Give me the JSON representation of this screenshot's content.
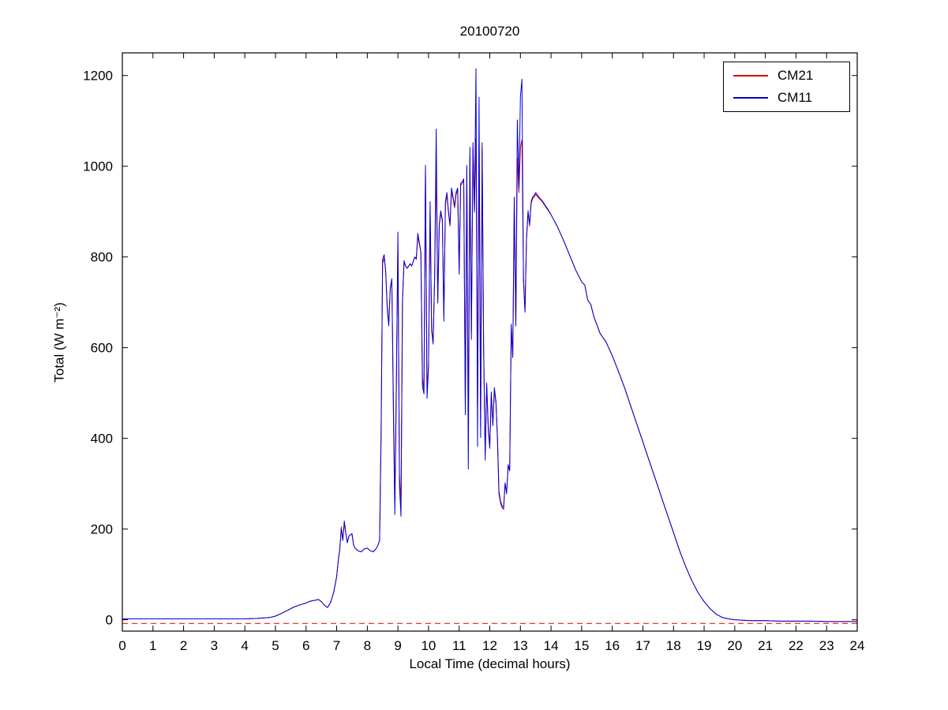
{
  "figure": {
    "background": "#ffffff"
  },
  "chart_data": {
    "type": "line",
    "title": "20100720",
    "xlabel": "Local Time (decimal hours)",
    "ylabel": "Total (W m⁻²)",
    "xlim": [
      0,
      24
    ],
    "ylim": [
      -25,
      1250
    ],
    "xticks": [
      0,
      1,
      2,
      3,
      4,
      5,
      6,
      7,
      8,
      9,
      10,
      11,
      12,
      13,
      14,
      15,
      16,
      17,
      18,
      19,
      20,
      21,
      22,
      23,
      24
    ],
    "yticks": [
      0,
      200,
      400,
      600,
      800,
      1000,
      1200
    ],
    "grid": false,
    "legend_position": "top-right",
    "series": [
      {
        "name": "CM21",
        "color": "#e00000"
      },
      {
        "name": "CM11",
        "color": "#0000dd"
      }
    ],
    "reference_line": {
      "y": -8,
      "color": "#e00000",
      "style": "dashed"
    },
    "points": [
      [
        0,
        2,
        2
      ],
      [
        0.5,
        2,
        2
      ],
      [
        1,
        2,
        2
      ],
      [
        1.5,
        2,
        2
      ],
      [
        2,
        2,
        2
      ],
      [
        2.5,
        2,
        2
      ],
      [
        3,
        2,
        2
      ],
      [
        3.5,
        2,
        2
      ],
      [
        4,
        2,
        2
      ],
      [
        4.4,
        3,
        3
      ],
      [
        4.8,
        5,
        5
      ],
      [
        5.0,
        8,
        8
      ],
      [
        5.2,
        14,
        14
      ],
      [
        5.4,
        21,
        21
      ],
      [
        5.6,
        28,
        28
      ],
      [
        5.8,
        33,
        33
      ],
      [
        6.0,
        37,
        37
      ],
      [
        6.1,
        40,
        40
      ],
      [
        6.2,
        42,
        42
      ],
      [
        6.3,
        43,
        43
      ],
      [
        6.4,
        45,
        45
      ],
      [
        6.5,
        40,
        40
      ],
      [
        6.6,
        32,
        32
      ],
      [
        6.7,
        27,
        27
      ],
      [
        6.8,
        38,
        38
      ],
      [
        6.9,
        60,
        60
      ],
      [
        7.0,
        95,
        95
      ],
      [
        7.05,
        130,
        130
      ],
      [
        7.1,
        155,
        155
      ],
      [
        7.15,
        205,
        200
      ],
      [
        7.2,
        175,
        175
      ],
      [
        7.25,
        212,
        218
      ],
      [
        7.3,
        190,
        190
      ],
      [
        7.35,
        170,
        170
      ],
      [
        7.4,
        185,
        185
      ],
      [
        7.5,
        190,
        190
      ],
      [
        7.55,
        165,
        165
      ],
      [
        7.6,
        158,
        158
      ],
      [
        7.7,
        152,
        152
      ],
      [
        7.8,
        150,
        150
      ],
      [
        7.9,
        156,
        156
      ],
      [
        8.0,
        158,
        158
      ],
      [
        8.1,
        152,
        152
      ],
      [
        8.2,
        150,
        150
      ],
      [
        8.3,
        158,
        158
      ],
      [
        8.35,
        165,
        165
      ],
      [
        8.4,
        175,
        175
      ],
      [
        8.45,
        420,
        400
      ],
      [
        8.5,
        785,
        795
      ],
      [
        8.55,
        798,
        805
      ],
      [
        8.6,
        770,
        768
      ],
      [
        8.65,
        695,
        688
      ],
      [
        8.7,
        652,
        648
      ],
      [
        8.75,
        728,
        732
      ],
      [
        8.8,
        748,
        752
      ],
      [
        8.85,
        500,
        470
      ],
      [
        8.9,
        262,
        232
      ],
      [
        8.95,
        540,
        520
      ],
      [
        9.0,
        830,
        855
      ],
      [
        9.05,
        320,
        295
      ],
      [
        9.1,
        252,
        228
      ],
      [
        9.15,
        700,
        705
      ],
      [
        9.2,
        788,
        792
      ],
      [
        9.25,
        780,
        780
      ],
      [
        9.3,
        775,
        775
      ],
      [
        9.35,
        780,
        780
      ],
      [
        9.4,
        785,
        785
      ],
      [
        9.45,
        780,
        780
      ],
      [
        9.5,
        790,
        790
      ],
      [
        9.55,
        800,
        800
      ],
      [
        9.6,
        795,
        795
      ],
      [
        9.65,
        845,
        852
      ],
      [
        9.7,
        828,
        832
      ],
      [
        9.75,
        810,
        810
      ],
      [
        9.8,
        535,
        515
      ],
      [
        9.85,
        505,
        498
      ],
      [
        9.9,
        995,
        1002
      ],
      [
        9.95,
        505,
        488
      ],
      [
        10.0,
        560,
        558
      ],
      [
        10.05,
        905,
        922
      ],
      [
        10.1,
        645,
        638
      ],
      [
        10.15,
        612,
        608
      ],
      [
        10.2,
        758,
        762
      ],
      [
        10.25,
        1000,
        1082
      ],
      [
        10.3,
        705,
        698
      ],
      [
        10.35,
        868,
        872
      ],
      [
        10.4,
        898,
        902
      ],
      [
        10.45,
        878,
        882
      ],
      [
        10.5,
        672,
        658
      ],
      [
        10.55,
        915,
        922
      ],
      [
        10.6,
        938,
        942
      ],
      [
        10.65,
        898,
        902
      ],
      [
        10.7,
        868,
        872
      ],
      [
        10.75,
        945,
        952
      ],
      [
        10.8,
        928,
        932
      ],
      [
        10.85,
        908,
        912
      ],
      [
        10.9,
        938,
        942
      ],
      [
        10.95,
        948,
        952
      ],
      [
        11.0,
        772,
        762
      ],
      [
        11.05,
        958,
        962
      ],
      [
        11.1,
        962,
        966
      ],
      [
        11.15,
        968,
        972
      ],
      [
        11.2,
        470,
        452
      ],
      [
        11.25,
        995,
        1002
      ],
      [
        11.3,
        420,
        332
      ],
      [
        11.35,
        1025,
        1042
      ],
      [
        11.4,
        635,
        618
      ],
      [
        11.45,
        1040,
        1052
      ],
      [
        11.5,
        898,
        902
      ],
      [
        11.55,
        1062,
        1215
      ],
      [
        11.6,
        468,
        382
      ],
      [
        11.65,
        1048,
        1152
      ],
      [
        11.7,
        425,
        402
      ],
      [
        11.75,
        1038,
        1052
      ],
      [
        11.8,
        605,
        598
      ],
      [
        11.85,
        368,
        352
      ],
      [
        11.9,
        515,
        522
      ],
      [
        11.95,
        425,
        418
      ],
      [
        12.0,
        385,
        378
      ],
      [
        12.05,
        495,
        502
      ],
      [
        12.1,
        432,
        428
      ],
      [
        12.15,
        505,
        512
      ],
      [
        12.2,
        478,
        482
      ],
      [
        12.25,
        405,
        398
      ],
      [
        12.3,
        285,
        278
      ],
      [
        12.35,
        262,
        258
      ],
      [
        12.4,
        252,
        248
      ],
      [
        12.45,
        248,
        244
      ],
      [
        12.5,
        298,
        302
      ],
      [
        12.55,
        282,
        278
      ],
      [
        12.6,
        338,
        342
      ],
      [
        12.65,
        328,
        330
      ],
      [
        12.7,
        642,
        652
      ],
      [
        12.75,
        582,
        578
      ],
      [
        12.8,
        912,
        932
      ],
      [
        12.85,
        652,
        648
      ],
      [
        12.9,
        1018,
        1102
      ],
      [
        12.95,
        942,
        952
      ],
      [
        13.0,
        1042,
        1152
      ],
      [
        13.05,
        1058,
        1192
      ],
      [
        13.1,
        752,
        748
      ],
      [
        13.15,
        682,
        678
      ],
      [
        13.2,
        838,
        842
      ],
      [
        13.25,
        898,
        902
      ],
      [
        13.3,
        868,
        872
      ],
      [
        13.35,
        918,
        922
      ],
      [
        13.4,
        928,
        932
      ],
      [
        13.45,
        932,
        936
      ],
      [
        13.5,
        938,
        942
      ],
      [
        13.6,
        930,
        932
      ],
      [
        13.7,
        923,
        925
      ],
      [
        13.8,
        913,
        915
      ],
      [
        13.9,
        903,
        905
      ],
      [
        14.0,
        893,
        893
      ],
      [
        14.2,
        868,
        868
      ],
      [
        14.4,
        838,
        838
      ],
      [
        14.6,
        805,
        805
      ],
      [
        14.8,
        772,
        772
      ],
      [
        15.0,
        745,
        745
      ],
      [
        15.1,
        738,
        738
      ],
      [
        15.2,
        705,
        705
      ],
      [
        15.3,
        695,
        695
      ],
      [
        15.4,
        668,
        668
      ],
      [
        15.6,
        632,
        632
      ],
      [
        15.8,
        612,
        612
      ],
      [
        16.0,
        582,
        582
      ],
      [
        16.2,
        548,
        548
      ],
      [
        16.4,
        512,
        512
      ],
      [
        16.6,
        472,
        472
      ],
      [
        16.8,
        432,
        432
      ],
      [
        17.0,
        392,
        392
      ],
      [
        17.2,
        352,
        352
      ],
      [
        17.4,
        312,
        312
      ],
      [
        17.6,
        272,
        272
      ],
      [
        17.8,
        232,
        232
      ],
      [
        18.0,
        192,
        192
      ],
      [
        18.2,
        152,
        152
      ],
      [
        18.4,
        117,
        117
      ],
      [
        18.6,
        86,
        86
      ],
      [
        18.8,
        60,
        60
      ],
      [
        19.0,
        40,
        40
      ],
      [
        19.2,
        24,
        24
      ],
      [
        19.4,
        12,
        12
      ],
      [
        19.6,
        5,
        5
      ],
      [
        19.8,
        2,
        2
      ],
      [
        20.0,
        0,
        0
      ],
      [
        20.5,
        -2,
        -2
      ],
      [
        21.0,
        -2,
        -2
      ],
      [
        21.5,
        -3,
        -3
      ],
      [
        22.0,
        -3,
        -3
      ],
      [
        22.5,
        -3,
        -3
      ],
      [
        23.0,
        -4,
        -4
      ],
      [
        23.5,
        -4,
        -4
      ],
      [
        24.0,
        -4,
        -4
      ]
    ]
  }
}
